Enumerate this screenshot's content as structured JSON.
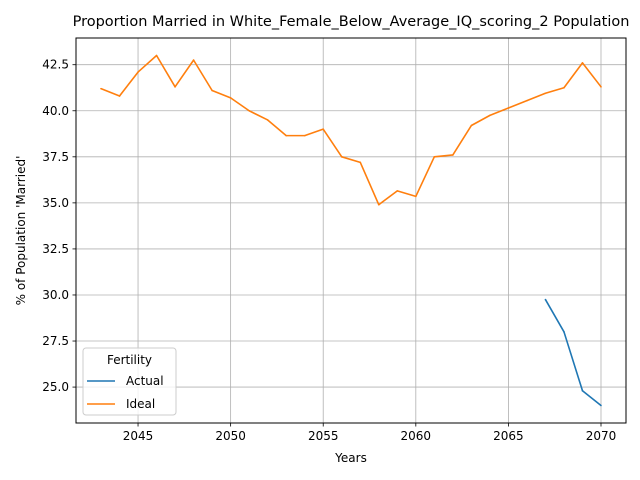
{
  "chart_data": {
    "type": "line",
    "title": "Proportion Married in White_Female_Below_Average_IQ_scoring_2 Population",
    "xlabel": "Years",
    "ylabel": "% of Population 'Married'",
    "xlim": [
      2041.65,
      2071.35
    ],
    "ylim": [
      23.05,
      43.95
    ],
    "xticks": [
      2045,
      2050,
      2055,
      2060,
      2065,
      2070
    ],
    "yticks": [
      25.0,
      27.5,
      30.0,
      32.5,
      35.0,
      37.5,
      40.0,
      42.5
    ],
    "grid": true,
    "legend": {
      "title": "Fertility",
      "position": "lower-left"
    },
    "series": [
      {
        "name": "Actual",
        "color": "#1f77b4",
        "x": [
          2067,
          2068,
          2069,
          2070
        ],
        "values": [
          29.75,
          28.0,
          24.8,
          24.0
        ]
      },
      {
        "name": "Ideal",
        "color": "#ff7f0e",
        "x": [
          2043,
          2044,
          2045,
          2046,
          2047,
          2048,
          2049,
          2050,
          2051,
          2052,
          2053,
          2054,
          2055,
          2056,
          2057,
          2058,
          2059,
          2060,
          2061,
          2062,
          2063,
          2064,
          2065,
          2066,
          2067,
          2068,
          2069,
          2070
        ],
        "values": [
          41.2,
          40.8,
          42.1,
          43.0,
          41.3,
          42.75,
          41.1,
          40.7,
          40.0,
          39.5,
          38.65,
          38.65,
          39.0,
          37.5,
          37.2,
          34.9,
          35.65,
          35.35,
          37.5,
          37.6,
          39.2,
          39.75,
          40.15,
          40.55,
          40.95,
          41.25,
          42.6,
          41.3
        ]
      }
    ]
  }
}
